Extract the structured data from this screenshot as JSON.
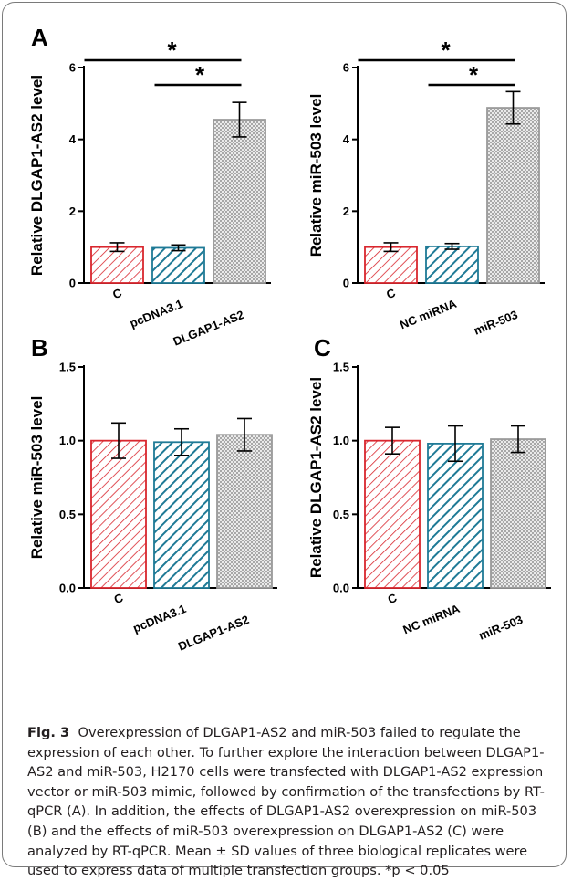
{
  "colors": {
    "red": "#d9262e",
    "teal": "#1f7a96",
    "gray": "#9a9a9a"
  },
  "figure_label": "Fig. 3",
  "caption_text": "Overexpression of DLGAP1-AS2 and miR-503 failed to regulate the expression of each other. To further explore the interaction between DLGAP1-AS2 and miR-503, H2170 cells were transfected with DLGAP1-AS2 expression vector or miR-503 mimic, followed by confirmation of the transfections by RT-qPCR (A). In addition, the effects of DLGAP1-AS2 overexpression on miR-503 (B) and the effects of miR-503 overexpression on DLGAP1-AS2 (C) were analyzed by RT-qPCR. Mean ± SD values of three biological replicates were used to express data of multiple transfection groups. *p < 0.05",
  "chart_data": [
    {
      "id": "A1",
      "panel": "A",
      "type": "bar",
      "ylabel": "Relative DLGAP1-AS2 level",
      "categories": [
        "C",
        "pcDNA3.1",
        "DLGAP1-AS2"
      ],
      "values": [
        1.0,
        0.98,
        4.55
      ],
      "errors": [
        0.12,
        0.08,
        0.48
      ],
      "patterns": [
        "red",
        "teal",
        "gray"
      ],
      "ylim": [
        0,
        6
      ],
      "yticks": [
        "0",
        "2",
        "4",
        "6"
      ],
      "significance": [
        {
          "from": 0,
          "to": 2,
          "label": "*"
        },
        {
          "from": 1,
          "to": 2,
          "label": "*"
        }
      ]
    },
    {
      "id": "A2",
      "panel": "",
      "type": "bar",
      "ylabel": "Relative miR-503 level",
      "categories": [
        "C",
        "NC miRNA",
        "miR-503"
      ],
      "values": [
        1.0,
        1.02,
        4.88
      ],
      "errors": [
        0.12,
        0.08,
        0.45
      ],
      "patterns": [
        "red",
        "teal",
        "gray"
      ],
      "ylim": [
        0,
        6
      ],
      "yticks": [
        "0",
        "2",
        "4",
        "6"
      ],
      "significance": [
        {
          "from": 0,
          "to": 2,
          "label": "*"
        },
        {
          "from": 1,
          "to": 2,
          "label": "*"
        }
      ]
    },
    {
      "id": "B",
      "panel": "B",
      "type": "bar",
      "ylabel": "Relative miR-503 level",
      "categories": [
        "C",
        "pcDNA3.1",
        "DLGAP1-AS2"
      ],
      "values": [
        1.0,
        0.99,
        1.04
      ],
      "errors": [
        0.12,
        0.09,
        0.11
      ],
      "patterns": [
        "red",
        "teal",
        "gray"
      ],
      "ylim": [
        0,
        1.5
      ],
      "yticks": [
        "0.0",
        "0.5",
        "1.0",
        "1.5"
      ],
      "significance": []
    },
    {
      "id": "C",
      "panel": "C",
      "type": "bar",
      "ylabel": "Relative DLGAP1-AS2 level",
      "categories": [
        "C",
        "NC miRNA",
        "miR-503"
      ],
      "values": [
        1.0,
        0.98,
        1.01
      ],
      "errors": [
        0.09,
        0.12,
        0.09
      ],
      "patterns": [
        "red",
        "teal",
        "gray"
      ],
      "ylim": [
        0,
        1.5
      ],
      "yticks": [
        "0.0",
        "0.5",
        "1.0",
        "1.5"
      ],
      "significance": []
    }
  ]
}
